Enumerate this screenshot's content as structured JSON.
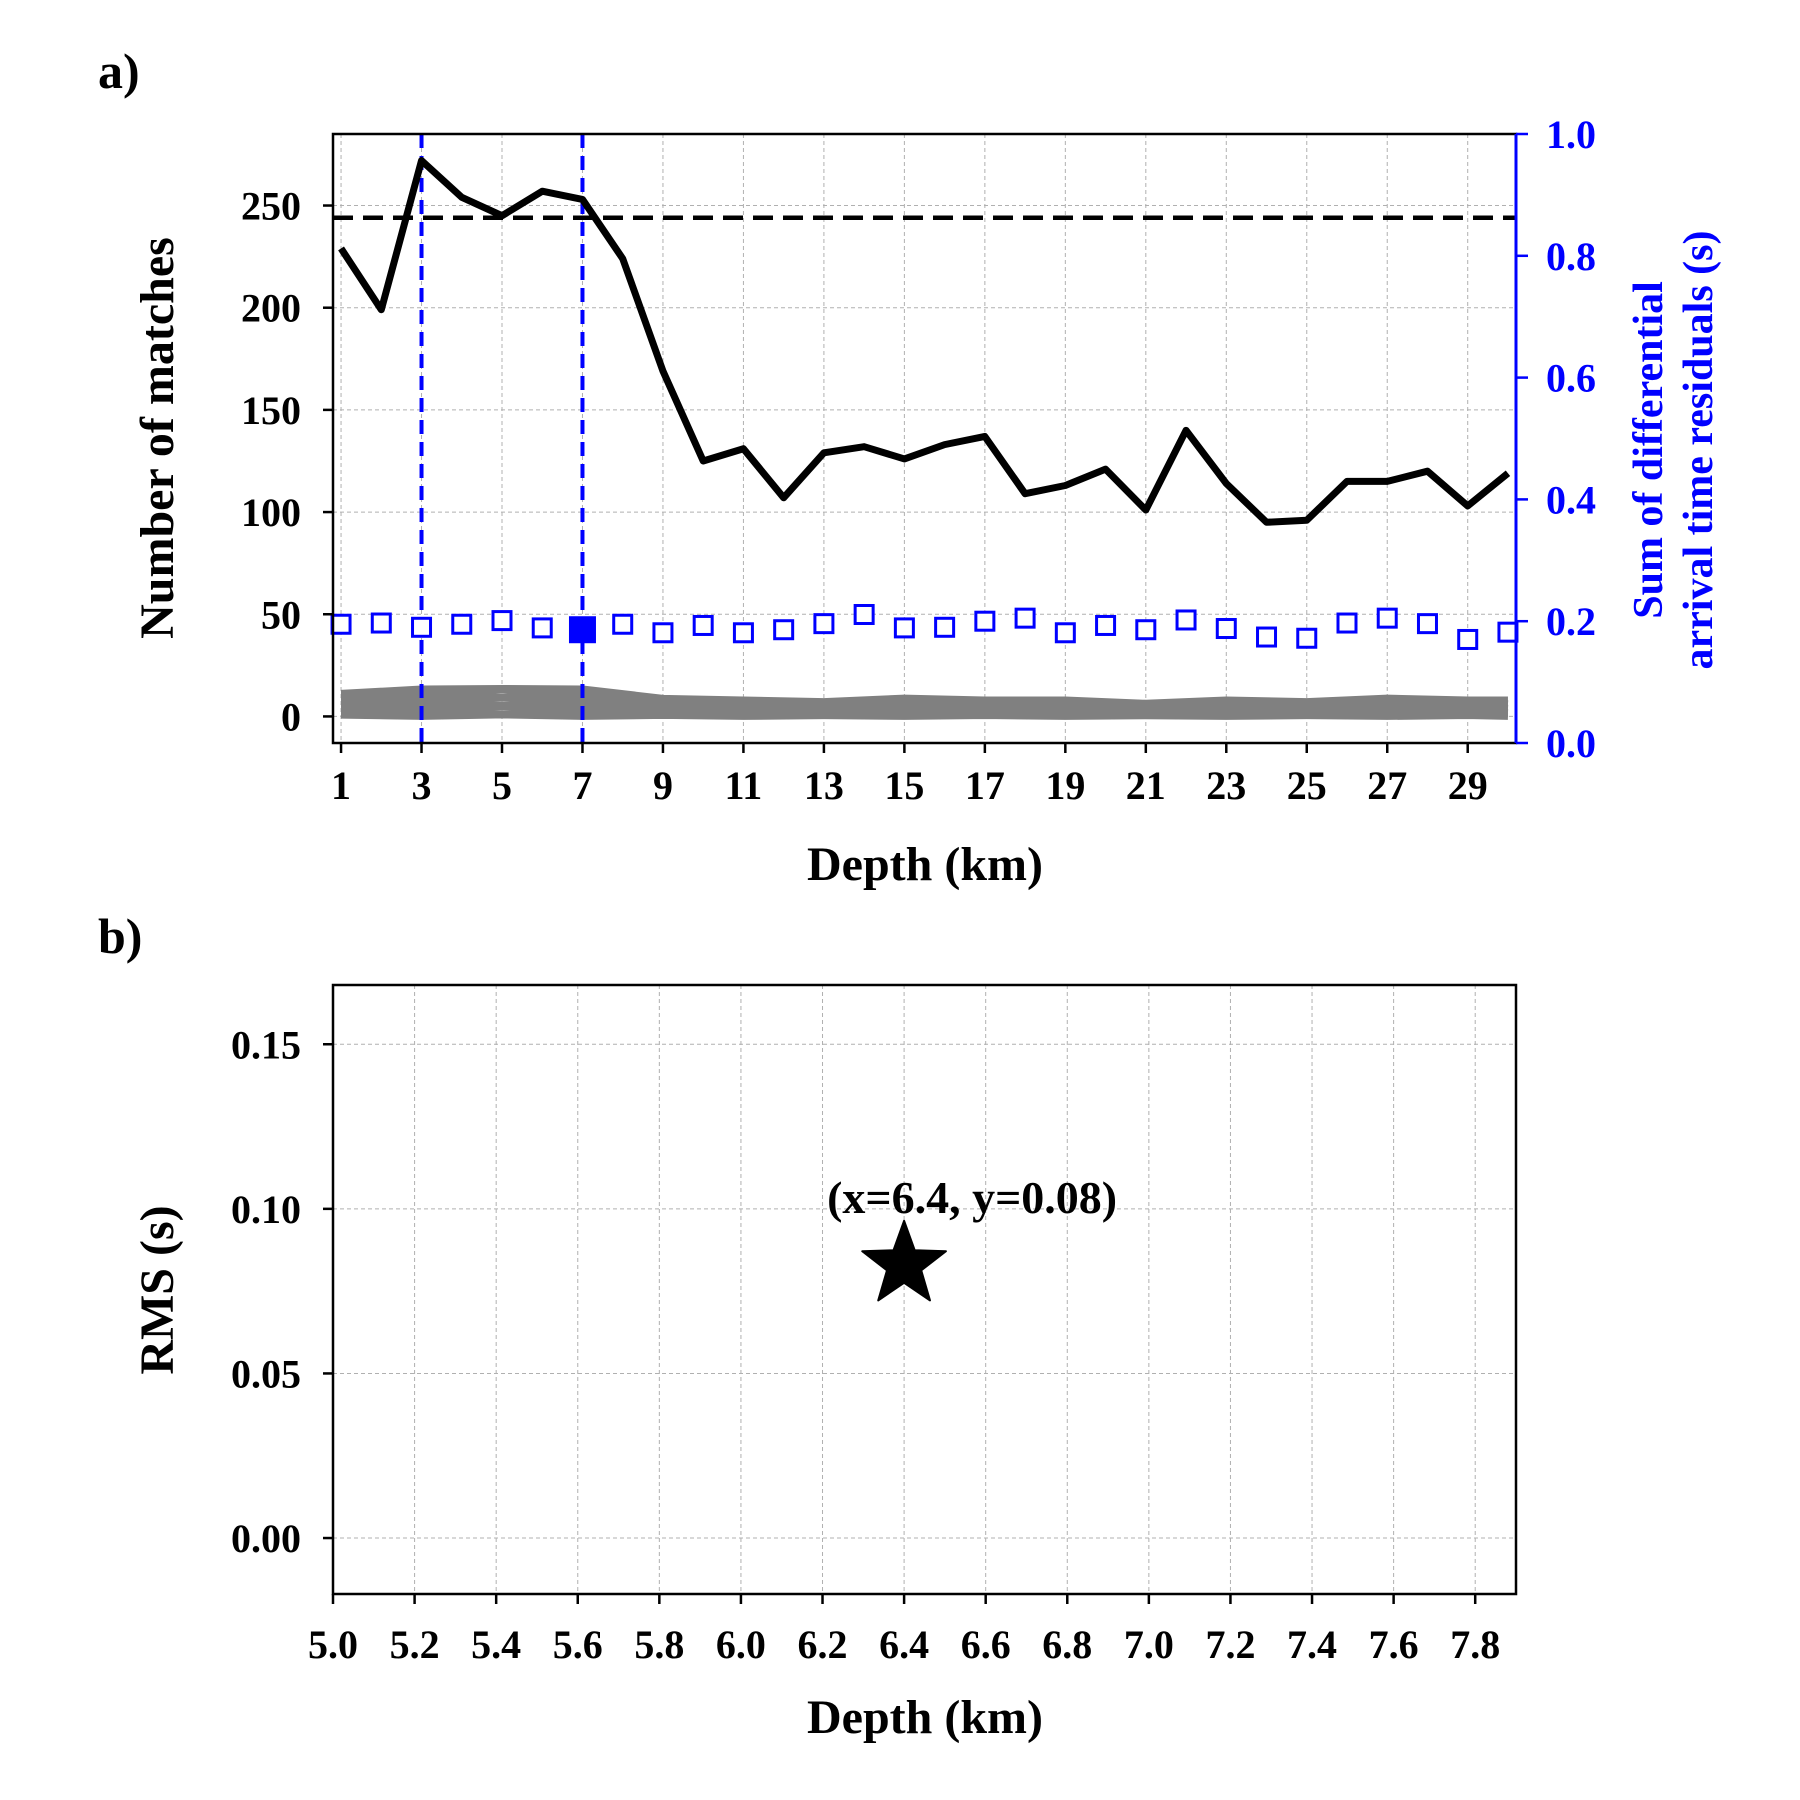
{
  "chart_data": [
    {
      "panel": "a)",
      "type": "line",
      "xlabel": "Depth (km)",
      "ylabel": "Number of matches",
      "y2label": [
        "Sum of differential",
        "arrival time residuals (s)"
      ],
      "xlim": [
        0.8,
        30.2
      ],
      "ylim": [
        -13,
        285
      ],
      "y2lim": [
        0.0,
        1.0
      ],
      "xticks": [
        1,
        3,
        5,
        7,
        9,
        11,
        13,
        15,
        17,
        19,
        21,
        23,
        25,
        27,
        29
      ],
      "yticks": [
        0,
        50,
        100,
        150,
        200,
        250
      ],
      "y2ticks": [
        "0.0",
        "0.2",
        "0.4",
        "0.6",
        "0.8",
        "1.0"
      ],
      "grid": true,
      "colors": {
        "matches": "#000000",
        "residual": "#0000ff",
        "secondary_axis": "#0000ff",
        "gray_band": "#808080"
      },
      "hline": {
        "y": 244,
        "style": "dashed",
        "color": "#000000"
      },
      "vlines": [
        {
          "x": 3,
          "style": "dashed",
          "color": "#0000ff"
        },
        {
          "x": 7,
          "style": "dashed",
          "color": "#0000ff"
        }
      ],
      "series": [
        {
          "role": "matches",
          "axis": "left",
          "style": "line",
          "x": [
            1,
            2,
            3,
            4,
            5,
            6,
            7,
            8,
            9,
            10,
            11,
            12,
            13,
            14,
            15,
            16,
            17,
            18,
            19,
            20,
            21,
            22,
            23,
            24,
            25,
            26,
            27,
            28,
            29,
            30
          ],
          "values": [
            229,
            199,
            272,
            254,
            245,
            257,
            253,
            224,
            169,
            125,
            131,
            107,
            129,
            132,
            126,
            133,
            137,
            109,
            113,
            121,
            101,
            140,
            114,
            95,
            96,
            115,
            115,
            120,
            103,
            119
          ]
        },
        {
          "role": "residual",
          "axis": "right",
          "style": "open-square markers",
          "x": [
            1,
            2,
            3,
            4,
            5,
            6,
            7,
            8,
            9,
            10,
            11,
            12,
            13,
            14,
            15,
            16,
            17,
            18,
            19,
            20,
            21,
            22,
            23,
            24,
            25,
            26,
            27,
            28,
            29,
            30
          ],
          "values": [
            0.195,
            0.197,
            0.19,
            0.195,
            0.201,
            0.189,
            0.186,
            0.195,
            0.181,
            0.193,
            0.181,
            0.186,
            0.196,
            0.211,
            0.189,
            0.19,
            0.2,
            0.205,
            0.181,
            0.193,
            0.186,
            0.202,
            0.188,
            0.174,
            0.172,
            0.197,
            0.205,
            0.196,
            0.17,
            0.182
          ],
          "highlight": {
            "x": 7,
            "value": 0.186,
            "style": "filled-square"
          }
        },
        {
          "role": "gray_band",
          "axis": "left",
          "style": "gray band lines",
          "x": [
            1,
            3,
            5,
            7,
            9,
            11,
            13,
            15,
            17,
            19,
            21,
            23,
            25,
            27,
            29,
            30
          ],
          "upper": [
            14,
            15,
            17,
            15,
            11,
            9,
            9,
            10,
            10,
            9,
            8,
            9,
            9,
            10,
            10,
            9
          ],
          "lower": [
            0,
            0,
            0,
            0,
            0,
            0,
            0,
            0,
            0,
            0,
            0,
            0,
            0,
            0,
            0,
            0
          ]
        }
      ]
    },
    {
      "panel": "b)",
      "type": "scatter",
      "xlabel": "Depth (km)",
      "ylabel": "RMS (s)",
      "xlim": [
        5.0,
        7.9
      ],
      "ylim": [
        -0.017,
        0.168
      ],
      "xticks": [
        "5.0",
        "5.2",
        "5.4",
        "5.6",
        "5.8",
        "6.0",
        "6.2",
        "6.4",
        "6.6",
        "6.8",
        "7.0",
        "7.2",
        "7.4",
        "7.6",
        "7.8"
      ],
      "yticks": [
        "0.00",
        "0.05",
        "0.10",
        "0.15"
      ],
      "grid": true,
      "points": [
        {
          "x": 6.4,
          "y": 0.083,
          "marker": "star",
          "color": "#000000"
        }
      ],
      "annotation": "(x=6.4, y=0.08)"
    }
  ]
}
